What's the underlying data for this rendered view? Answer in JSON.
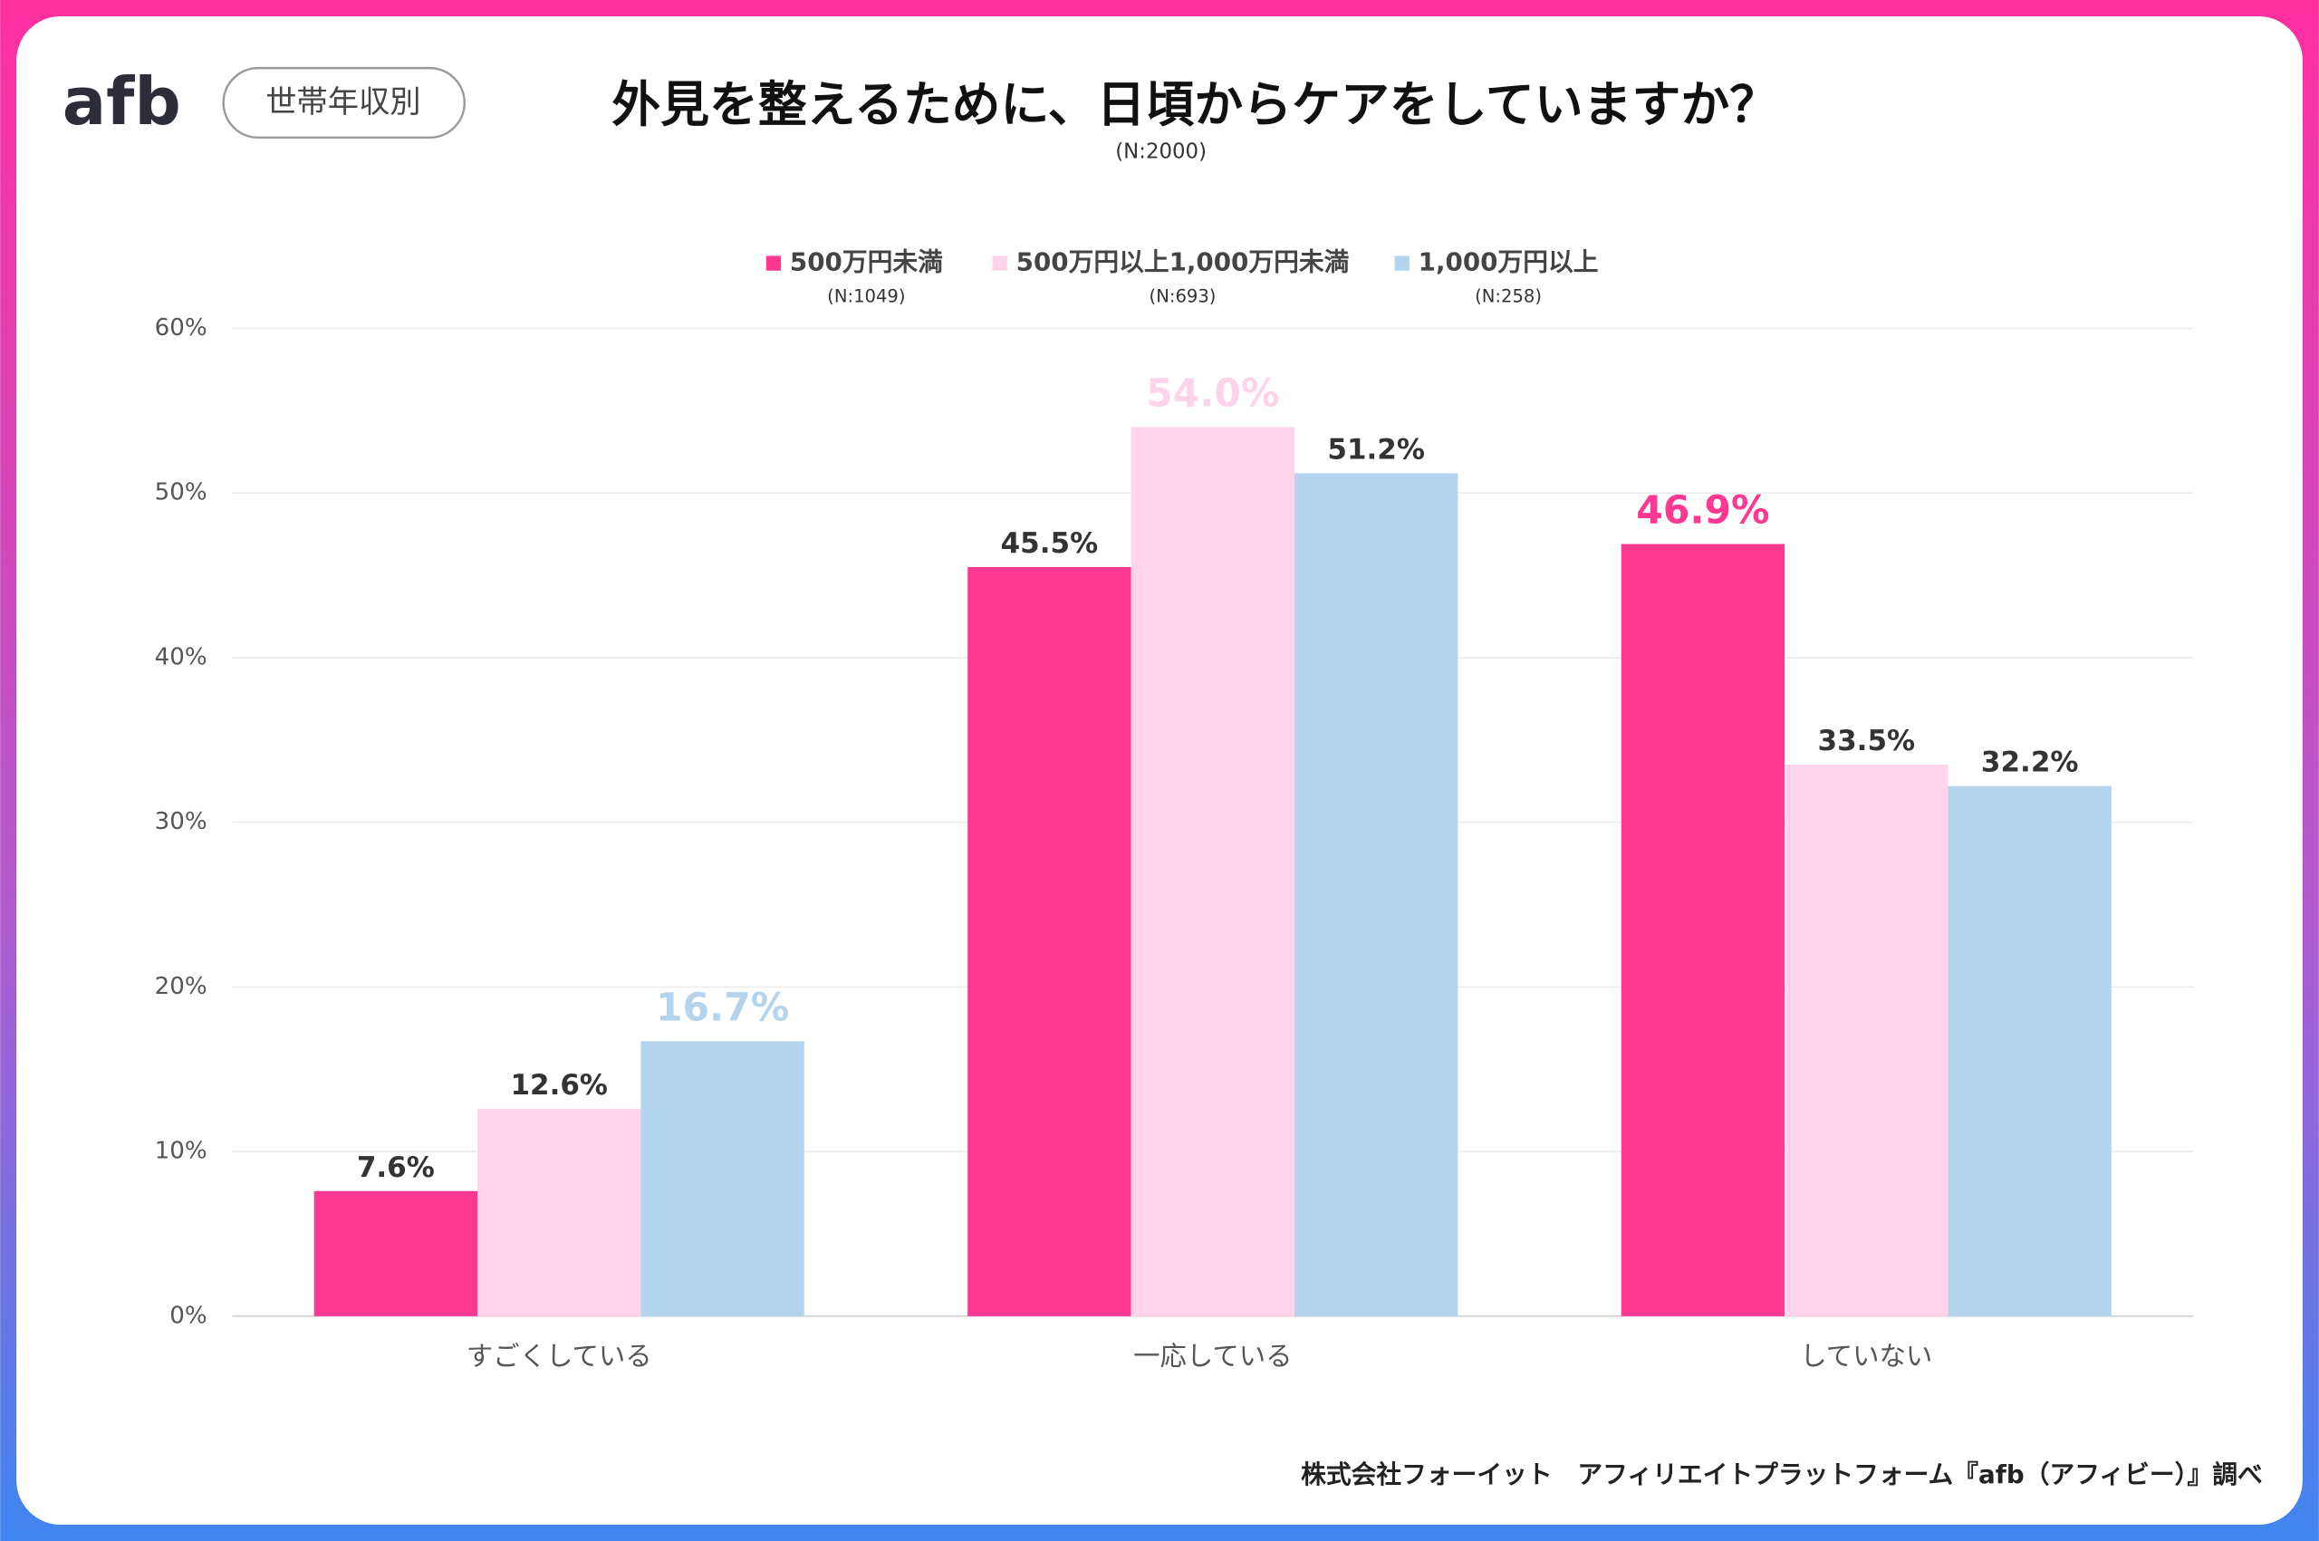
{
  "logo": "afb",
  "tag": "世帯年収別",
  "chart_data": {
    "type": "bar",
    "title": "外見を整えるために、日頃からケアをしていますか？",
    "subtitle": "(N:2000)",
    "categories": [
      "すごくしている",
      "一応している",
      "していない"
    ],
    "series": [
      {
        "name": "500万円未満",
        "n_label": "(N:1049)",
        "color": "#ff3891",
        "values": [
          7.6,
          45.5,
          46.9
        ],
        "value_labels": [
          "7.6%",
          "45.5%",
          "46.9%"
        ]
      },
      {
        "name": "500万円以上1,000万円未満",
        "n_label": "(N:693)",
        "color": "#ffd3ea",
        "values": [
          12.6,
          54.0,
          33.5
        ],
        "value_labels": [
          "12.6%",
          "54.0%",
          "33.5%"
        ]
      },
      {
        "name": "1,000万円以上",
        "n_label": "(N:258)",
        "color": "#b3d4ec",
        "values": [
          16.7,
          51.2,
          32.2
        ],
        "value_labels": [
          "16.7%",
          "51.2%",
          "32.2%"
        ]
      }
    ],
    "ylim": [
      0,
      60
    ],
    "yticks": [
      {
        "value": 0,
        "label": "0%"
      },
      {
        "value": 10,
        "label": "10%"
      },
      {
        "value": 20,
        "label": "20%"
      },
      {
        "value": 30,
        "label": "30%"
      },
      {
        "value": 40,
        "label": "40%"
      },
      {
        "value": 50,
        "label": "50%"
      },
      {
        "value": 60,
        "label": "60%"
      }
    ],
    "grid": true,
    "legend": "top"
  },
  "footer": "株式会社フォーイット　アフィリエイトプラットフォーム『afb（アフィビー）』調べ"
}
